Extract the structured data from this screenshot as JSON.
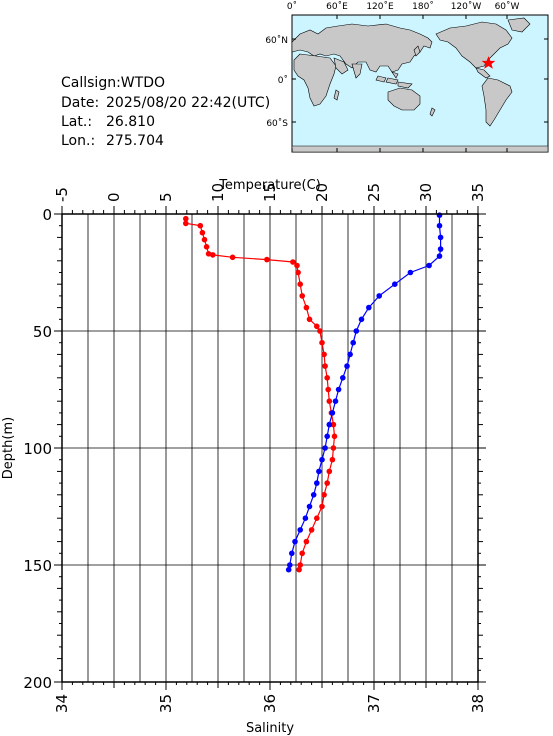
{
  "station": {
    "callsign_label": "Callsign:",
    "callsign": "WTDO",
    "date_label": "Date:",
    "date": "2025/08/20 22:42(UTC)",
    "lat_label": "Lat.:",
    "lat": "26.810",
    "lon_label": "Lon.:",
    "lon": "275.704"
  },
  "map": {
    "lon_ticks": [
      "0˚",
      "60˚E",
      "120˚E",
      "180˚",
      "120˚W",
      "60˚W"
    ],
    "lat_ticks": [
      "60˚N",
      "0˚",
      "60˚S"
    ],
    "ocean_color": "#ccf5ff",
    "land_color": "#c8c8c8",
    "marker_color": "#ff0000"
  },
  "chart_data": {
    "type": "line",
    "top_axis": {
      "label": "Temperature(C)",
      "range": [
        -5,
        35
      ],
      "tick_labels": [
        "-5",
        "0",
        "5",
        "10",
        "15",
        "20",
        "25",
        "30",
        "35"
      ]
    },
    "bottom_axis": {
      "label": "Salinity",
      "range": [
        34,
        38
      ],
      "tick_labels": [
        "34",
        "35",
        "36",
        "37",
        "38"
      ]
    },
    "y_axis": {
      "label": "Depth(m)",
      "range": [
        0,
        200
      ],
      "inverted": true,
      "tick_labels": [
        "0",
        "50",
        "100",
        "150",
        "200"
      ]
    },
    "grid": true,
    "series": [
      {
        "color": "#ff0000",
        "axis": "bottom",
        "points": [
          [
            35.19,
            2.0
          ],
          [
            35.19,
            4.0
          ],
          [
            35.33,
            5.0
          ],
          [
            35.35,
            8.0
          ],
          [
            35.37,
            11.0
          ],
          [
            35.39,
            14.0
          ],
          [
            35.41,
            17.0
          ],
          [
            35.45,
            17.5
          ],
          [
            35.64,
            18.5
          ],
          [
            35.97,
            19.5
          ],
          [
            36.22,
            20.5
          ],
          [
            36.26,
            22.0
          ],
          [
            36.27,
            25.0
          ],
          [
            36.29,
            30.0
          ],
          [
            36.31,
            35.0
          ],
          [
            36.35,
            40.0
          ],
          [
            36.38,
            45.0
          ],
          [
            36.45,
            48.0
          ],
          [
            36.48,
            50.0
          ],
          [
            36.5,
            55.0
          ],
          [
            36.52,
            60.0
          ],
          [
            36.53,
            65.0
          ],
          [
            36.55,
            70.0
          ],
          [
            36.56,
            75.0
          ],
          [
            36.57,
            80.0
          ],
          [
            36.59,
            85.0
          ],
          [
            36.61,
            90.0
          ],
          [
            36.62,
            95.0
          ],
          [
            36.61,
            100.0
          ],
          [
            36.6,
            105.0
          ],
          [
            36.57,
            110.0
          ],
          [
            36.55,
            115.0
          ],
          [
            36.52,
            120.0
          ],
          [
            36.5,
            125.0
          ],
          [
            36.45,
            130.0
          ],
          [
            36.4,
            135.0
          ],
          [
            36.35,
            140.0
          ],
          [
            36.31,
            145.0
          ],
          [
            36.29,
            150.0
          ],
          [
            36.28,
            152.0
          ]
        ]
      },
      {
        "color": "#0000ff",
        "axis": "top",
        "points": [
          [
            31.3,
            0.5
          ],
          [
            31.3,
            5.0
          ],
          [
            31.4,
            10.0
          ],
          [
            31.4,
            15.0
          ],
          [
            31.3,
            18.0
          ],
          [
            30.3,
            22.0
          ],
          [
            28.5,
            25.0
          ],
          [
            27.0,
            30.0
          ],
          [
            25.5,
            35.0
          ],
          [
            24.5,
            40.0
          ],
          [
            23.8,
            45.0
          ],
          [
            23.3,
            50.0
          ],
          [
            23.0,
            55.0
          ],
          [
            22.7,
            60.0
          ],
          [
            22.4,
            65.0
          ],
          [
            22.0,
            70.0
          ],
          [
            21.6,
            75.0
          ],
          [
            21.3,
            80.0
          ],
          [
            21.0,
            85.0
          ],
          [
            20.7,
            90.0
          ],
          [
            20.5,
            95.0
          ],
          [
            20.3,
            100.0
          ],
          [
            20.0,
            105.0
          ],
          [
            19.7,
            110.0
          ],
          [
            19.5,
            115.0
          ],
          [
            19.2,
            120.0
          ],
          [
            18.8,
            125.0
          ],
          [
            18.4,
            130.0
          ],
          [
            17.9,
            135.0
          ],
          [
            17.4,
            140.0
          ],
          [
            17.1,
            145.0
          ],
          [
            16.9,
            150.0
          ],
          [
            16.8,
            152.0
          ]
        ]
      }
    ]
  }
}
